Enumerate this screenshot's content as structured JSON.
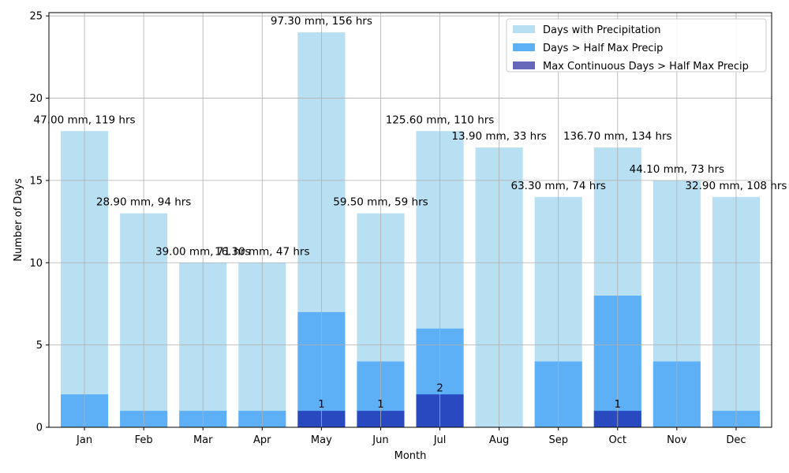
{
  "chart_data": {
    "type": "bar",
    "xlabel": "Month",
    "ylabel": "Number of Days",
    "ylim": [
      0,
      25.2
    ],
    "yticks": [
      0,
      5,
      10,
      15,
      20,
      25
    ],
    "grid": true,
    "legend_position": "top-right",
    "categories": [
      "Jan",
      "Feb",
      "Mar",
      "Apr",
      "May",
      "Jun",
      "Jul",
      "Aug",
      "Sep",
      "Oct",
      "Nov",
      "Dec"
    ],
    "series": [
      {
        "name": "Days with Precipitation",
        "color": "#b8dff2",
        "values": [
          18,
          13,
          10,
          10,
          24,
          13,
          18,
          17,
          14,
          17,
          15,
          14
        ]
      },
      {
        "name": "Days > Half Max Precip",
        "color": "#5eb0f6",
        "values": [
          2,
          1,
          1,
          1,
          7,
          4,
          6,
          0,
          4,
          8,
          4,
          1
        ]
      },
      {
        "name": "Max Continuous Days > Half Max Precip",
        "color": "#2849c0",
        "legend_color": "#6868bb",
        "values": [
          0,
          0,
          0,
          0,
          1,
          1,
          2,
          0,
          0,
          1,
          0,
          0
        ]
      }
    ],
    "bar_annotations": [
      "47.00 mm, 119 hrs",
      "28.90 mm, 94 hrs",
      "39.00 mm, 71 hrs",
      "16.30 mm, 47 hrs",
      "97.30 mm, 156 hrs",
      "59.50 mm, 59 hrs",
      "125.60 mm, 110 hrs",
      "13.90 mm, 33 hrs",
      "63.30 mm, 74 hrs",
      "136.70 mm, 134 hrs",
      "44.10 mm, 73 hrs",
      "32.90 mm, 108 hrs"
    ],
    "continuous_labels": [
      "",
      "",
      "",
      "",
      "1",
      "1",
      "2",
      "",
      "",
      "1",
      "",
      ""
    ]
  }
}
